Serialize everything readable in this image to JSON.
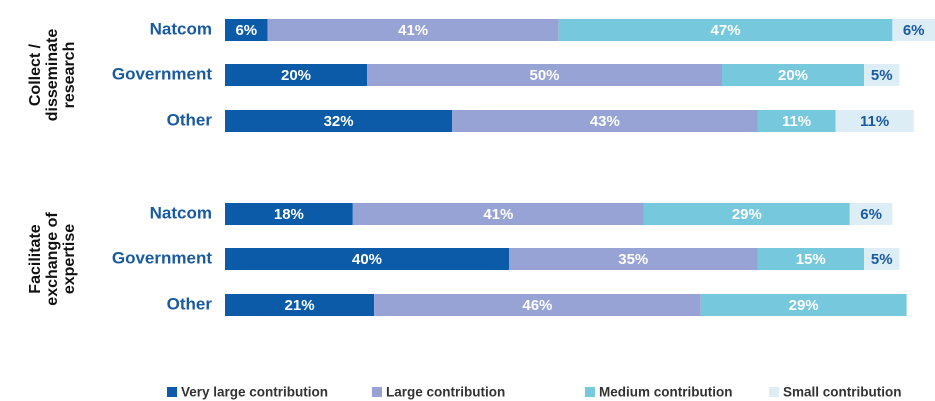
{
  "chart_data": {
    "type": "stacked-bar",
    "group_labels": [
      [
        "Collect /",
        "disseminate",
        "research"
      ],
      [
        "Facilitate",
        "exchange of",
        "expertise"
      ]
    ],
    "categories": [
      "Natcom",
      "Government",
      "Other",
      "Natcom",
      "Government",
      "Other"
    ],
    "series": [
      {
        "name": "Very large contribution",
        "color": "#0b5ba8",
        "values": [
          6,
          20,
          32,
          18,
          40,
          21
        ],
        "value_labels": [
          "6%",
          "20%",
          "32%",
          "18%",
          "40%",
          "21%"
        ]
      },
      {
        "name": "Large contribution",
        "color": "#97a3d4",
        "values": [
          41,
          50,
          43,
          41,
          35,
          46
        ],
        "value_labels": [
          "41%",
          "50%",
          "43%",
          "41%",
          "35%",
          "46%"
        ]
      },
      {
        "name": "Medium contribution",
        "color": "#76c8dc",
        "values": [
          47,
          20,
          11,
          29,
          15,
          29
        ],
        "value_labels": [
          "47%",
          "20%",
          "11%",
          "29%",
          "15%",
          "29%"
        ]
      },
      {
        "name": "Small contribution",
        "color": "#dcedf5",
        "values": [
          6,
          5,
          11,
          6,
          5,
          null
        ],
        "value_labels": [
          "6%",
          "5%",
          "11%",
          "6%",
          "5%",
          null
        ]
      }
    ]
  }
}
